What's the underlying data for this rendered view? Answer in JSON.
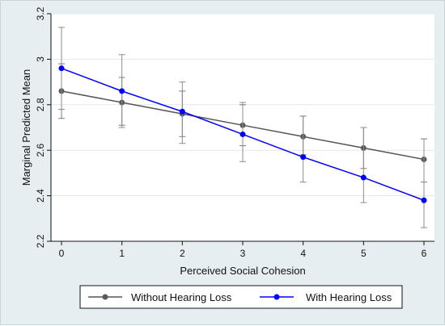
{
  "chart_data": {
    "type": "line",
    "title": "",
    "xlabel": "Perceived Social Cohesion",
    "ylabel": "Marginal Predicted Mean",
    "x": [
      0,
      1,
      2,
      3,
      4,
      5,
      6
    ],
    "xlim": [
      0,
      6
    ],
    "ylim": [
      2.2,
      3.2
    ],
    "x_ticks": [
      "0",
      "1",
      "2",
      "3",
      "4",
      "5",
      "6"
    ],
    "y_ticks": [
      "2.2",
      "2.4",
      "2.6",
      "2.8",
      "3",
      "3.2"
    ],
    "grid": true,
    "legend_position": "bottom",
    "series": [
      {
        "name": "Without Hearing Loss",
        "color": "#555555",
        "marker_color": "#5a5a5a",
        "values": [
          2.86,
          2.81,
          2.76,
          2.71,
          2.66,
          2.61,
          2.56
        ],
        "ci_low": [
          2.74,
          2.71,
          2.66,
          2.62,
          2.58,
          2.52,
          2.46
        ],
        "ci_high": [
          2.98,
          2.92,
          2.86,
          2.8,
          2.75,
          2.7,
          2.65
        ]
      },
      {
        "name": "With Hearing Loss",
        "color": "#0000ff",
        "marker_color": "#0000ff",
        "values": [
          2.96,
          2.86,
          2.77,
          2.67,
          2.57,
          2.48,
          2.38
        ],
        "ci_low": [
          2.78,
          2.7,
          2.63,
          2.55,
          2.46,
          2.37,
          2.26
        ],
        "ci_high": [
          3.14,
          3.02,
          2.9,
          2.81,
          2.75,
          2.7,
          2.65
        ]
      }
    ]
  }
}
